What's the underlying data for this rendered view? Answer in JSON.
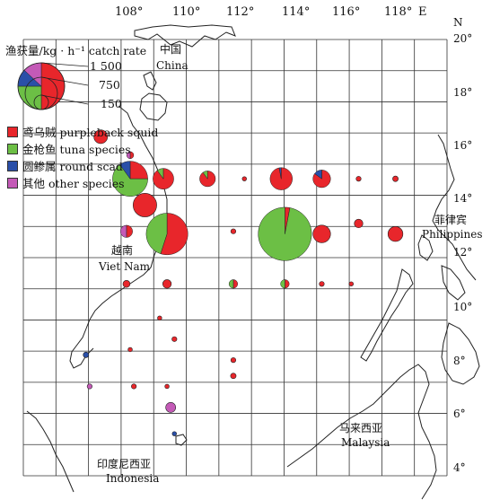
{
  "axes": {
    "longitude_labels": [
      "108°",
      "110°",
      "112°",
      "114°",
      "116°",
      "118°",
      "E"
    ],
    "latitude_labels": [
      "20°",
      "18°",
      "16°",
      "14°",
      "12°",
      "10°",
      "8°",
      "6°",
      "4°"
    ],
    "north_label": "N"
  },
  "legend": {
    "title": "渔获量/kg · h⁻¹ catch rate",
    "scale": [
      "1 500",
      "750",
      "150"
    ],
    "items": [
      {
        "label": "鸢乌贼 purpleback squid",
        "color": "#e8262b"
      },
      {
        "label": "金枪鱼 tuna species",
        "color": "#6cbf45"
      },
      {
        "label": "圆鲹属 round scad",
        "color": "#2a4fa8"
      },
      {
        "label": "其他 other species",
        "color": "#c45ab7"
      }
    ]
  },
  "places": {
    "china_cn": "中国",
    "china_en": "China",
    "vietnam_cn": "越南",
    "vietnam_en": "Viet Nam",
    "philippines_cn": "菲律宾",
    "philippines_en": "Philippines",
    "malaysia_cn": "马来西亚",
    "malaysia_en": "Malaysia",
    "indonesia_cn": "印度尼西亚",
    "indonesia_en": "Indonesia"
  },
  "stations": [
    {
      "lon": 109.6,
      "lat": 16.5,
      "rate": 150,
      "squid": 1.0,
      "tuna": 0,
      "scad": 0,
      "other": 0
    },
    {
      "lon": 110.4,
      "lat": 15.8,
      "rate": 40,
      "squid": 0.5,
      "tuna": 0,
      "scad": 0,
      "other": 0.5
    },
    {
      "lon": 110.4,
      "lat": 14.9,
      "rate": 1000,
      "squid": 0.25,
      "tuna": 0.65,
      "scad": 0.1,
      "other": 0
    },
    {
      "lon": 111.3,
      "lat": 14.9,
      "rate": 350,
      "squid": 0.9,
      "tuna": 0.1,
      "scad": 0,
      "other": 0
    },
    {
      "lon": 112.5,
      "lat": 14.9,
      "rate": 200,
      "squid": 0.9,
      "tuna": 0.1,
      "scad": 0,
      "other": 0
    },
    {
      "lon": 113.5,
      "lat": 14.9,
      "rate": 10,
      "squid": 1.0,
      "tuna": 0,
      "scad": 0,
      "other": 0
    },
    {
      "lon": 114.5,
      "lat": 14.9,
      "rate": 400,
      "squid": 0.97,
      "tuna": 0,
      "scad": 0.03,
      "other": 0
    },
    {
      "lon": 115.6,
      "lat": 14.9,
      "rate": 250,
      "squid": 0.85,
      "tuna": 0,
      "scad": 0.15,
      "other": 0
    },
    {
      "lon": 116.6,
      "lat": 14.9,
      "rate": 20,
      "squid": 1.0,
      "tuna": 0,
      "scad": 0,
      "other": 0
    },
    {
      "lon": 117.6,
      "lat": 14.9,
      "rate": 25,
      "squid": 1.0,
      "tuna": 0,
      "scad": 0,
      "other": 0
    },
    {
      "lon": 110.8,
      "lat": 13.9,
      "rate": 450,
      "squid": 1.0,
      "tuna": 0,
      "scad": 0,
      "other": 0
    },
    {
      "lon": 110.3,
      "lat": 12.9,
      "rate": 120,
      "squid": 0.5,
      "tuna": 0,
      "scad": 0,
      "other": 0.5
    },
    {
      "lon": 111.4,
      "lat": 12.8,
      "rate": 1400,
      "squid": 0.55,
      "tuna": 0.45,
      "scad": 0,
      "other": 0
    },
    {
      "lon": 113.2,
      "lat": 12.9,
      "rate": 20,
      "squid": 1.0,
      "tuna": 0,
      "scad": 0,
      "other": 0
    },
    {
      "lon": 114.6,
      "lat": 12.8,
      "rate": 2300,
      "squid": 0.03,
      "tuna": 0.97,
      "scad": 0,
      "other": 0
    },
    {
      "lon": 115.6,
      "lat": 12.8,
      "rate": 250,
      "squid": 1.0,
      "tuna": 0,
      "scad": 0,
      "other": 0
    },
    {
      "lon": 116.6,
      "lat": 13.2,
      "rate": 60,
      "squid": 1.0,
      "tuna": 0,
      "scad": 0,
      "other": 0
    },
    {
      "lon": 117.6,
      "lat": 12.8,
      "rate": 180,
      "squid": 1.0,
      "tuna": 0,
      "scad": 0,
      "other": 0
    },
    {
      "lon": 110.3,
      "lat": 10.9,
      "rate": 40,
      "squid": 1.0,
      "tuna": 0,
      "scad": 0,
      "other": 0
    },
    {
      "lon": 111.4,
      "lat": 10.9,
      "rate": 60,
      "squid": 1.0,
      "tuna": 0,
      "scad": 0,
      "other": 0
    },
    {
      "lon": 113.2,
      "lat": 10.9,
      "rate": 60,
      "squid": 0.5,
      "tuna": 0.5,
      "scad": 0,
      "other": 0
    },
    {
      "lon": 114.6,
      "lat": 10.9,
      "rate": 60,
      "squid": 0.5,
      "tuna": 0.5,
      "scad": 0,
      "other": 0
    },
    {
      "lon": 115.6,
      "lat": 10.9,
      "rate": 20,
      "squid": 1.0,
      "tuna": 0,
      "scad": 0,
      "other": 0
    },
    {
      "lon": 116.4,
      "lat": 10.9,
      "rate": 15,
      "squid": 1.0,
      "tuna": 0,
      "scad": 0,
      "other": 0
    },
    {
      "lon": 111.2,
      "lat": 9.6,
      "rate": 15,
      "squid": 1.0,
      "tuna": 0,
      "scad": 0,
      "other": 0
    },
    {
      "lon": 111.6,
      "lat": 8.8,
      "rate": 20,
      "squid": 1.0,
      "tuna": 0,
      "scad": 0,
      "other": 0
    },
    {
      "lon": 109.2,
      "lat": 8.2,
      "rate": 25,
      "squid": 0,
      "tuna": 0,
      "scad": 1.0,
      "other": 0
    },
    {
      "lon": 110.4,
      "lat": 8.4,
      "rate": 8,
      "squid": 1.0,
      "tuna": 0,
      "scad": 0,
      "other": 0
    },
    {
      "lon": 113.2,
      "lat": 8.0,
      "rate": 20,
      "squid": 1.0,
      "tuna": 0,
      "scad": 0,
      "other": 0
    },
    {
      "lon": 113.2,
      "lat": 7.4,
      "rate": 25,
      "squid": 1.0,
      "tuna": 0,
      "scad": 0,
      "other": 0
    },
    {
      "lon": 109.3,
      "lat": 7.0,
      "rate": 20,
      "squid": 0,
      "tuna": 0,
      "scad": 0,
      "other": 1.0
    },
    {
      "lon": 110.5,
      "lat": 7.0,
      "rate": 20,
      "squid": 1.0,
      "tuna": 0,
      "scad": 0,
      "other": 0
    },
    {
      "lon": 111.4,
      "lat": 7.0,
      "rate": 15,
      "squid": 1.0,
      "tuna": 0,
      "scad": 0,
      "other": 0
    },
    {
      "lon": 111.5,
      "lat": 6.2,
      "rate": 80,
      "squid": 0,
      "tuna": 0,
      "scad": 0,
      "other": 1.0
    },
    {
      "lon": 111.6,
      "lat": 5.2,
      "rate": 15,
      "squid": 0,
      "tuna": 0,
      "scad": 1.0,
      "other": 0
    }
  ]
}
